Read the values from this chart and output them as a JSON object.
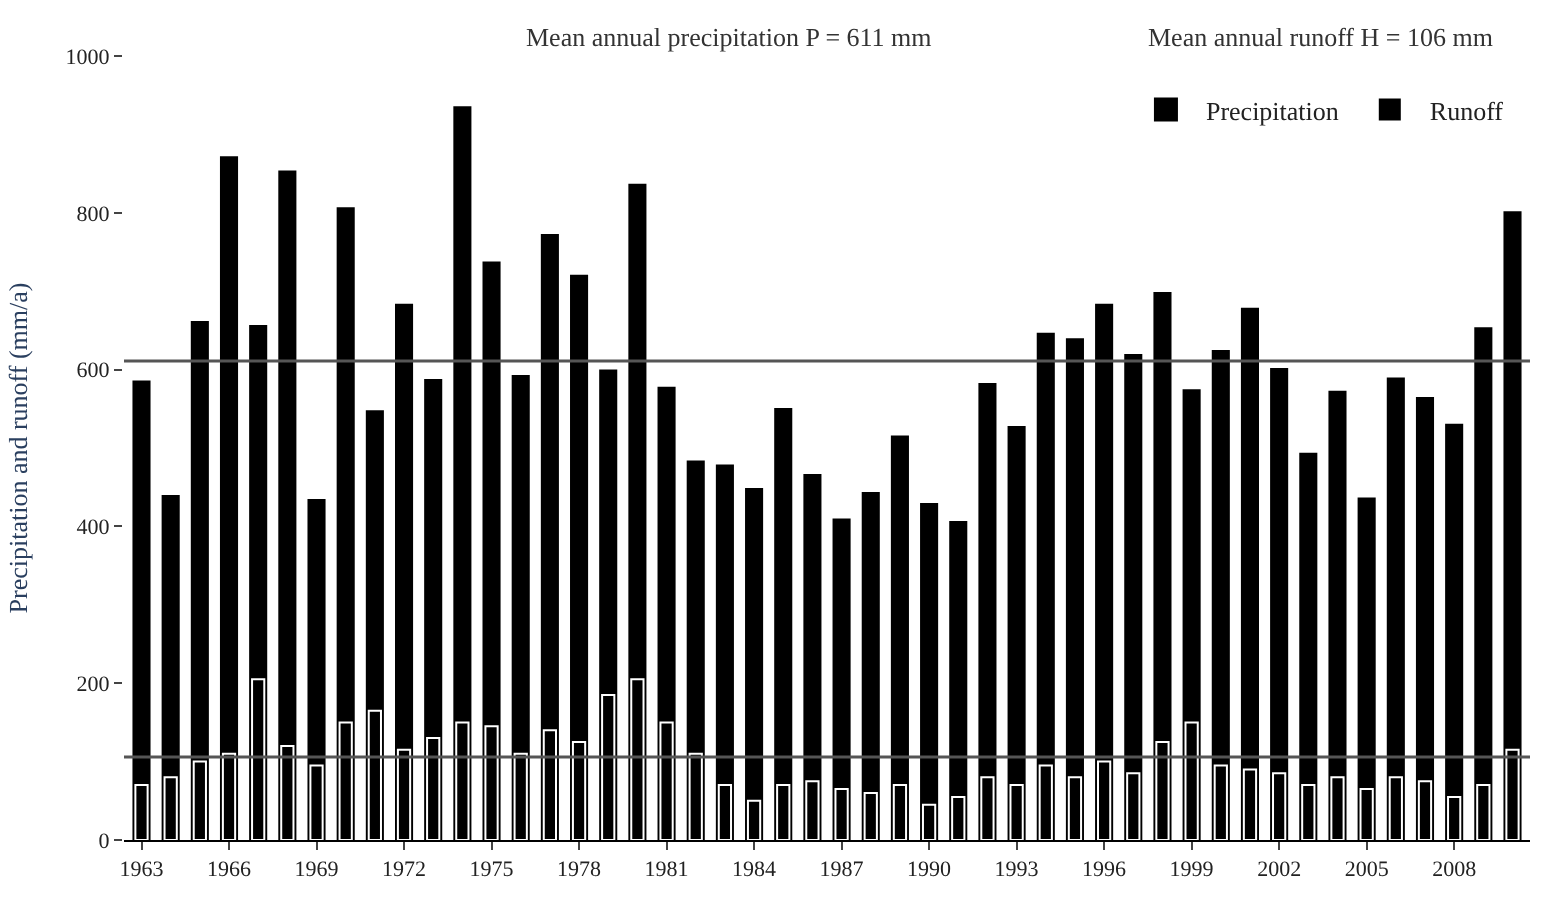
{
  "chart_data": {
    "type": "bar",
    "x": [
      1963,
      1964,
      1965,
      1966,
      1967,
      1968,
      1969,
      1970,
      1971,
      1972,
      1973,
      1974,
      1975,
      1976,
      1977,
      1978,
      1979,
      1980,
      1981,
      1982,
      1983,
      1984,
      1985,
      1986,
      1987,
      1988,
      1989,
      1990,
      1991,
      1992,
      1993,
      1994,
      1995,
      1996,
      1997,
      1998,
      1999,
      2000,
      2001,
      2002,
      2003,
      2004,
      2005,
      2006,
      2007,
      2008,
      2009,
      2010
    ],
    "series": [
      {
        "name": "Precipitation",
        "color": "#000000",
        "values": [
          586,
          440,
          662,
          872,
          657,
          854,
          435,
          807,
          548,
          684,
          588,
          936,
          738,
          593,
          773,
          721,
          600,
          837,
          578,
          484,
          479,
          449,
          551,
          467,
          410,
          444,
          516,
          430,
          407,
          583,
          528,
          647,
          640,
          684,
          620,
          699,
          575,
          625,
          679,
          602,
          494,
          573,
          437,
          590,
          565,
          531,
          654,
          802
        ]
      },
      {
        "name": "Runoff",
        "color": "#000000",
        "values": [
          70,
          80,
          100,
          110,
          205,
          120,
          95,
          150,
          165,
          115,
          130,
          150,
          145,
          110,
          140,
          125,
          185,
          205,
          150,
          110,
          70,
          50,
          70,
          75,
          65,
          60,
          70,
          45,
          55,
          80,
          70,
          95,
          80,
          100,
          85,
          125,
          150,
          95,
          90,
          85,
          70,
          80,
          65,
          80,
          75,
          55,
          70,
          115
        ]
      }
    ],
    "xlim": [
      1962.4,
      2010.6
    ],
    "xticks": [
      1963,
      1966,
      1969,
      1972,
      1975,
      1978,
      1981,
      1984,
      1987,
      1990,
      1993,
      1996,
      1999,
      2002,
      2005,
      2008
    ],
    "ylim": [
      0,
      1000
    ],
    "yticks": [
      0,
      200,
      400,
      600,
      800,
      1000
    ],
    "ylabel": "Precipitation and runoff (mm/a)",
    "annotations": [
      "Mean annual precipitation P = 611 mm",
      "Mean annual runoff H = 106 mm"
    ],
    "ref_lines": [
      {
        "axis": "y",
        "value": 611,
        "color": "#555555"
      },
      {
        "axis": "y",
        "value": 106,
        "color": "#555555"
      }
    ],
    "legend": "top right"
  }
}
